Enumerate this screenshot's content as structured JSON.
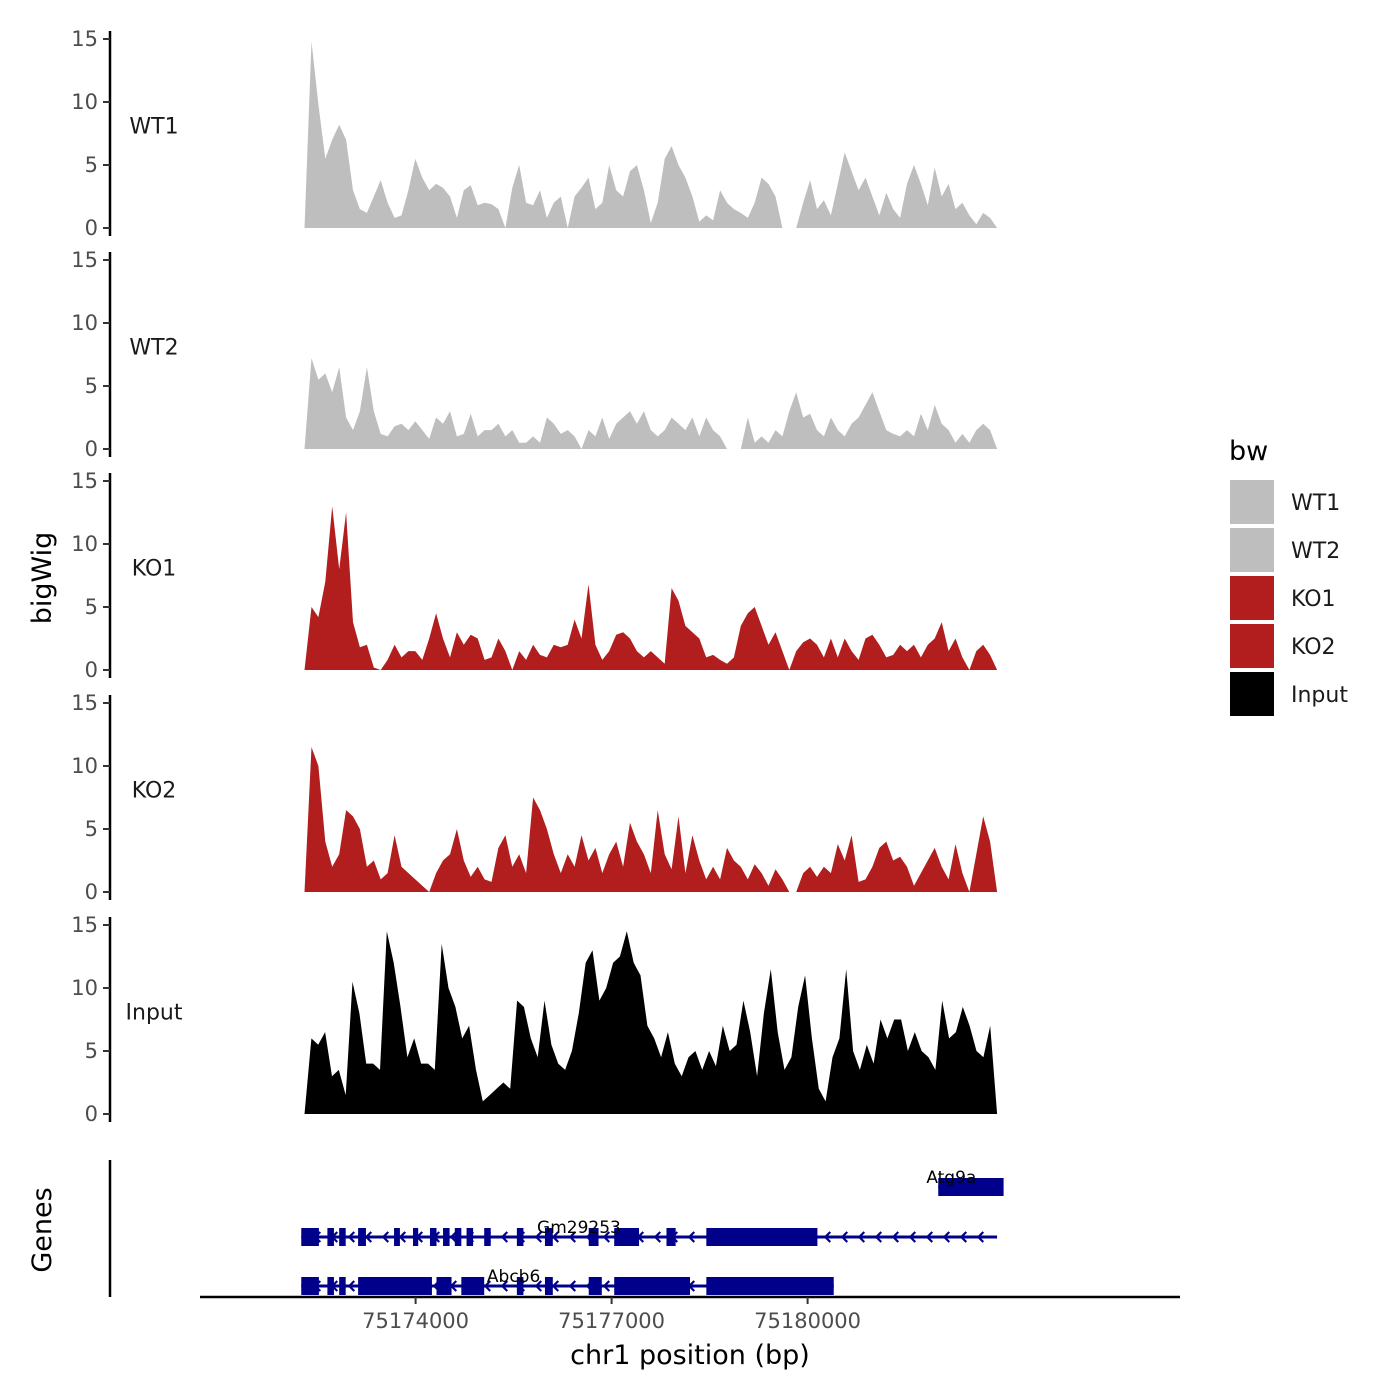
{
  "chart_data": {
    "type": "area",
    "title": "",
    "xlabel": "chr1 position (bp)",
    "ylabel": "bigWig",
    "genes_label": "Genes",
    "xlim": [
      75170700,
      75185700
    ],
    "x_ticks": [
      75174000,
      75177000,
      75180000
    ],
    "x_tick_labels": [
      "75174000",
      "75177000",
      "75180000"
    ],
    "ylim": [
      0,
      15
    ],
    "y_ticks": [
      0,
      5,
      10,
      15
    ],
    "y_tick_labels": [
      "0",
      "5",
      "10",
      "15"
    ],
    "legend": {
      "title": "bw",
      "position": "right",
      "entries": [
        {
          "label": "WT1",
          "color": "#bebebe"
        },
        {
          "label": "WT2",
          "color": "#bebebe"
        },
        {
          "label": "KO1",
          "color": "#b21e1e"
        },
        {
          "label": "KO2",
          "color": "#b21e1e"
        },
        {
          "label": "Input",
          "color": "#000000"
        }
      ]
    },
    "data_range": [
      75172300,
      75182900
    ],
    "series": [
      {
        "name": "WT1",
        "color": "#bebebe",
        "values": [
          0.0,
          14.8,
          9.8,
          5.5,
          7.0,
          8.2,
          7.0,
          3.0,
          1.5,
          1.2,
          2.5,
          3.8,
          2.0,
          0.8,
          1.0,
          3.0,
          5.5,
          4.0,
          3.0,
          3.5,
          3.2,
          2.5,
          0.8,
          3.0,
          3.4,
          1.8,
          2.0,
          1.9,
          1.5,
          0.0,
          3.2,
          5.0,
          2.0,
          1.8,
          3.0,
          0.8,
          2.0,
          2.5,
          0.0,
          2.5,
          3.2,
          4.0,
          1.5,
          2.0,
          5.0,
          3.0,
          2.5,
          4.5,
          5.0,
          3.0,
          0.4,
          2.0,
          5.5,
          6.5,
          5.0,
          4.0,
          2.5,
          0.5,
          1.0,
          0.6,
          3.0,
          2.0,
          1.5,
          1.2,
          0.8,
          2.0,
          4.0,
          3.5,
          2.5,
          0.0,
          0.0,
          0.0,
          2.0,
          3.8,
          1.5,
          2.2,
          1.0,
          3.5,
          6.0,
          4.5,
          3.0,
          4.0,
          2.5,
          1.0,
          2.8,
          1.5,
          0.8,
          3.5,
          5.0,
          3.5,
          1.8,
          4.8,
          2.5,
          3.5,
          1.5,
          2.0,
          1.0,
          0.3,
          1.2,
          0.8,
          0.0
        ]
      },
      {
        "name": "WT2",
        "color": "#bebebe",
        "values": [
          0.0,
          7.2,
          5.5,
          6.0,
          4.5,
          6.5,
          2.5,
          1.5,
          3.0,
          6.5,
          3.0,
          1.2,
          1.0,
          1.8,
          2.0,
          1.5,
          2.2,
          1.5,
          0.8,
          2.5,
          2.0,
          3.0,
          1.0,
          1.2,
          2.8,
          1.0,
          1.5,
          1.5,
          2.0,
          1.0,
          1.5,
          0.5,
          0.5,
          1.0,
          0.5,
          2.5,
          2.0,
          1.2,
          1.5,
          1.0,
          0.0,
          1.5,
          1.0,
          2.5,
          0.8,
          2.0,
          2.5,
          3.0,
          2.0,
          3.0,
          1.5,
          1.0,
          1.5,
          2.5,
          2.0,
          1.5,
          2.5,
          1.0,
          2.5,
          1.5,
          1.0,
          0.0,
          0.0,
          0.0,
          2.5,
          0.5,
          1.0,
          0.5,
          1.5,
          1.0,
          3.0,
          4.5,
          2.5,
          2.8,
          1.5,
          1.0,
          2.5,
          1.5,
          1.0,
          2.0,
          2.5,
          3.5,
          4.5,
          3.0,
          1.5,
          1.2,
          1.0,
          1.5,
          1.0,
          2.8,
          1.5,
          3.5,
          2.0,
          1.5,
          0.5,
          1.2,
          0.5,
          1.5,
          2.0,
          1.5,
          0.0
        ]
      },
      {
        "name": "KO1",
        "color": "#b21e1e",
        "values": [
          0.0,
          5.0,
          4.2,
          7.0,
          13.0,
          8.0,
          12.5,
          3.8,
          1.8,
          2.0,
          0.2,
          0.0,
          0.8,
          2.0,
          1.0,
          1.5,
          1.5,
          0.8,
          2.5,
          4.5,
          2.5,
          1.0,
          3.0,
          2.0,
          2.8,
          2.5,
          0.8,
          1.0,
          2.5,
          1.5,
          0.0,
          1.5,
          0.8,
          2.0,
          1.2,
          1.0,
          2.0,
          1.8,
          2.0,
          4.0,
          2.5,
          6.8,
          2.0,
          0.8,
          1.5,
          2.8,
          3.0,
          2.5,
          1.5,
          1.0,
          1.5,
          1.0,
          0.5,
          6.5,
          5.5,
          3.5,
          3.0,
          2.5,
          1.0,
          1.2,
          0.8,
          0.5,
          1.0,
          3.5,
          4.5,
          5.0,
          3.5,
          2.0,
          3.0,
          1.5,
          0.0,
          1.5,
          2.2,
          2.5,
          2.0,
          1.0,
          2.5,
          1.0,
          2.5,
          1.5,
          0.8,
          2.5,
          2.8,
          2.0,
          1.0,
          1.2,
          2.0,
          1.5,
          2.0,
          1.0,
          2.0,
          2.5,
          3.8,
          1.5,
          2.5,
          1.0,
          0.0,
          1.5,
          2.0,
          1.2,
          0.0
        ]
      },
      {
        "name": "KO2",
        "color": "#b21e1e",
        "values": [
          0.0,
          11.5,
          10.0,
          4.0,
          2.0,
          3.0,
          6.5,
          6.0,
          5.0,
          2.0,
          2.5,
          1.0,
          1.5,
          4.5,
          2.0,
          1.5,
          1.0,
          0.5,
          0.0,
          1.5,
          2.5,
          3.0,
          5.0,
          2.5,
          1.2,
          2.0,
          1.0,
          0.8,
          3.5,
          4.5,
          2.0,
          3.0,
          1.5,
          7.5,
          6.5,
          5.0,
          3.0,
          1.5,
          3.0,
          2.0,
          4.5,
          2.5,
          3.5,
          1.5,
          3.0,
          4.0,
          2.0,
          5.5,
          4.0,
          3.0,
          1.5,
          6.5,
          3.0,
          1.8,
          6.0,
          1.5,
          4.5,
          2.5,
          1.0,
          2.0,
          1.0,
          3.5,
          2.5,
          2.0,
          1.0,
          2.2,
          1.5,
          0.5,
          1.8,
          1.0,
          0.0,
          0.0,
          1.5,
          2.0,
          1.2,
          2.0,
          1.5,
          3.8,
          2.5,
          4.5,
          0.8,
          1.0,
          2.0,
          3.5,
          4.0,
          2.5,
          2.8,
          2.0,
          0.5,
          1.5,
          2.5,
          3.5,
          2.0,
          1.0,
          3.8,
          1.5,
          0.0,
          3.0,
          6.0,
          4.0,
          0.0
        ]
      },
      {
        "name": "Input",
        "color": "#000000",
        "values": [
          0.0,
          6.0,
          5.5,
          6.5,
          3.0,
          3.5,
          1.5,
          10.5,
          8.0,
          4.0,
          4.0,
          3.5,
          14.5,
          12.0,
          8.5,
          4.5,
          6.0,
          4.0,
          4.0,
          3.5,
          13.5,
          10.0,
          8.5,
          6.0,
          7.0,
          3.5,
          1.0,
          1.5,
          2.0,
          2.5,
          2.0,
          9.0,
          8.5,
          6.0,
          4.5,
          9.0,
          5.5,
          4.0,
          3.5,
          5.0,
          8.0,
          12.0,
          13.0,
          9.0,
          10.0,
          12.0,
          12.5,
          14.5,
          12.0,
          11.0,
          7.0,
          6.0,
          4.5,
          6.5,
          4.0,
          3.0,
          4.5,
          5.0,
          3.5,
          5.0,
          3.8,
          7.0,
          5.0,
          5.5,
          9.0,
          6.5,
          3.0,
          8.0,
          11.5,
          6.5,
          3.5,
          4.5,
          8.5,
          11.0,
          6.0,
          2.0,
          1.0,
          4.5,
          6.0,
          11.5,
          5.0,
          3.5,
          5.5,
          4.0,
          7.5,
          6.0,
          7.5,
          7.5,
          5.0,
          6.5,
          5.0,
          4.5,
          3.5,
          9.0,
          6.0,
          6.5,
          8.5,
          7.0,
          5.0,
          4.5,
          7.0,
          0.0
        ]
      }
    ],
    "genes": [
      {
        "name": "Atg9a",
        "row": 0,
        "start": 75182000,
        "end": 75182900,
        "label_x": 75182200,
        "exons": [
          [
            75182000,
            75183000
          ]
        ]
      },
      {
        "name": "Gm29253",
        "row": 1,
        "start": 75172250,
        "end": 75182900,
        "label_x": 75176500,
        "exons": [
          [
            75172250,
            75172520
          ],
          [
            75172650,
            75172750
          ],
          [
            75172830,
            75172930
          ],
          [
            75173120,
            75173240
          ],
          [
            75173670,
            75173760
          ],
          [
            75173960,
            75174040
          ],
          [
            75174220,
            75174320
          ],
          [
            75174420,
            75174520
          ],
          [
            75174600,
            75174700
          ],
          [
            75174780,
            75174880
          ],
          [
            75175050,
            75175150
          ],
          [
            75175550,
            75175650
          ],
          [
            75175980,
            75176100
          ],
          [
            75176650,
            75176800
          ],
          [
            75177040,
            75177420
          ],
          [
            75177840,
            75177980
          ],
          [
            75178450,
            75180150
          ]
        ]
      },
      {
        "name": "Abcb6",
        "row": 2,
        "start": 75172250,
        "end": 75180400,
        "label_x": 75175500,
        "exons": [
          [
            75172250,
            75172520
          ],
          [
            75172650,
            75172750
          ],
          [
            75172830,
            75172930
          ],
          [
            75173120,
            75174250
          ],
          [
            75174320,
            75174550
          ],
          [
            75174700,
            75175050
          ],
          [
            75175550,
            75175650
          ],
          [
            75175980,
            75176100
          ],
          [
            75176650,
            75176850
          ],
          [
            75177040,
            75178200
          ],
          [
            75178450,
            75180400
          ]
        ]
      }
    ]
  }
}
